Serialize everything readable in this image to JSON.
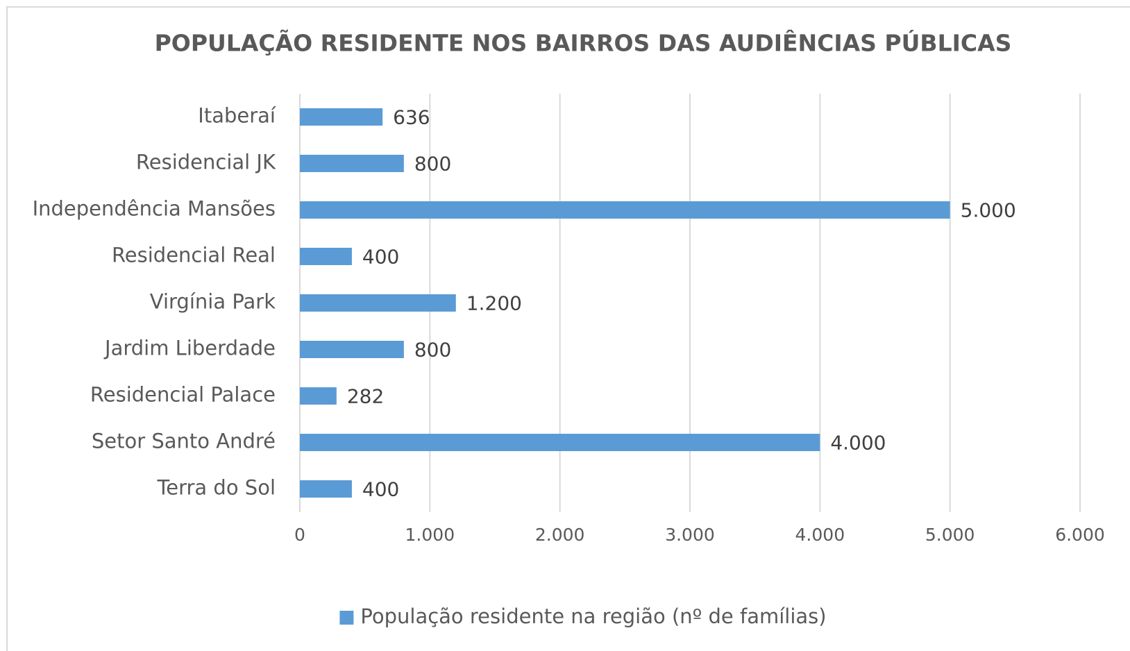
{
  "chart_data": {
    "type": "bar",
    "orientation": "horizontal",
    "title": "POPULAÇÃO RESIDENTE NOS BAIRROS DAS AUDIÊNCIAS PÚBLICAS",
    "categories": [
      "Itaberaí",
      "Residencial JK",
      "Independência Mansões",
      "Residencial Real",
      "Virgínia Park",
      "Jardim Liberdade",
      "Residencial Palace",
      "Setor Santo André",
      "Terra do Sol"
    ],
    "series": [
      {
        "name": "População residente na região (nº de famílias)",
        "color": "#5b9bd5",
        "values": [
          636,
          800,
          5000,
          400,
          1200,
          800,
          282,
          4000,
          400
        ],
        "value_labels": [
          "636",
          "800",
          "5.000",
          "400",
          "1.200",
          "800",
          "282",
          "4.000",
          "400"
        ]
      }
    ],
    "xlim": [
      0,
      6000
    ],
    "xticks": [
      0,
      {
        "value": 1000,
        "label": "1.000"
      },
      {
        "value": 2000,
        "label": "2.000"
      },
      {
        "value": 3000,
        "label": "3.000"
      },
      {
        "value": 4000,
        "label": "4.000"
      },
      {
        "value": 5000,
        "label": "5.000"
      },
      {
        "value": 6000,
        "label": "6.000"
      }
    ],
    "grid": true,
    "legend": "bottom"
  }
}
